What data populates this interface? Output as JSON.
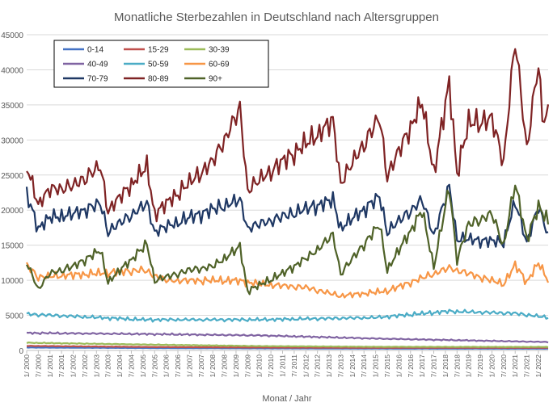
{
  "chart_data": {
    "type": "line",
    "title": "Monatliche Sterbezahlen in Deutschland nach Altersgruppen",
    "xlabel": "Monat /  Jahr",
    "ylabel": "",
    "ylim": [
      0,
      45000
    ],
    "yticks": [
      0,
      5000,
      10000,
      15000,
      20000,
      25000,
      30000,
      35000,
      40000,
      45000
    ],
    "ytick_labels": [
      "0",
      "5000",
      "10000",
      "15000",
      "20000",
      "25000",
      "30000",
      "35000",
      "40000",
      "45000"
    ],
    "x_range": [
      "2000-01",
      "2022-06"
    ],
    "x_tick_labels": [
      "1/ 2000",
      "7/ 2000",
      "1/ 2001",
      "7/ 2001",
      "1/ 2002",
      "7/ 2002",
      "1/ 2003",
      "7/ 2003",
      "1/ 2004",
      "7/ 2004",
      "1/ 2005",
      "7/ 2005",
      "1/ 2006",
      "7/ 2006",
      "1/ 2007",
      "7/ 2007",
      "1/ 2008",
      "7/ 2008",
      "1/ 2009",
      "7/ 2009",
      "1/ 2010",
      "7/ 2010",
      "1/ 2011",
      "7/ 2011",
      "1/ 2012",
      "7/ 2012",
      "1/ 2013",
      "7/ 2013",
      "1/ 2014",
      "7/ 2014",
      "1/ 2015",
      "7/ 2015",
      "1/ 2016",
      "7/ 2016",
      "1/ 2017",
      "7/ 2017",
      "1/ 2018",
      "7/ 2018",
      "1/ 2019",
      "7/ 2019",
      "1/ 2020",
      "7/ 2020",
      "1/ 2021",
      "7/ 2021",
      "1/ 2022"
    ],
    "grid": "horizontal",
    "legend_position": "top-left",
    "series": [
      {
        "name": "0-14",
        "color": "#4472c4",
        "points": [
          [
            "2000-01",
            420
          ],
          [
            "2005-01",
            350
          ],
          [
            "2010-01",
            300
          ],
          [
            "2015-01",
            260
          ],
          [
            "2022-06",
            250
          ]
        ]
      },
      {
        "name": "15-29",
        "color": "#c0504d",
        "points": [
          [
            "2000-01",
            650
          ],
          [
            "2005-01",
            500
          ],
          [
            "2010-01",
            420
          ],
          [
            "2015-01",
            380
          ],
          [
            "2022-06",
            380
          ]
        ]
      },
      {
        "name": "30-39",
        "color": "#9bbb59",
        "points": [
          [
            "2000-01",
            1100
          ],
          [
            "2005-01",
            850
          ],
          [
            "2010-01",
            620
          ],
          [
            "2015-01",
            520
          ],
          [
            "2022-06",
            500
          ]
        ]
      },
      {
        "name": "40-49",
        "color": "#8064a2",
        "points": [
          [
            "2000-01",
            2500
          ],
          [
            "2005-01",
            2350
          ],
          [
            "2010-01",
            2150
          ],
          [
            "2015-01",
            1700
          ],
          [
            "2022-06",
            1200
          ]
        ]
      },
      {
        "name": "50-59",
        "color": "#4bacc6",
        "points": [
          [
            "2000-01",
            5200
          ],
          [
            "2005-01",
            4400
          ],
          [
            "2010-01",
            4400
          ],
          [
            "2015-01",
            4700
          ],
          [
            "2018-03",
            5600
          ],
          [
            "2021-01",
            5300
          ],
          [
            "2022-06",
            4700
          ]
        ]
      },
      {
        "name": "60-69",
        "color": "#f79646",
        "points": [
          [
            "2000-01",
            12200
          ],
          [
            "2000-07",
            10500
          ],
          [
            "2003-01",
            11000
          ],
          [
            "2005-01",
            11500
          ],
          [
            "2006-01",
            10000
          ],
          [
            "2009-01",
            10000
          ],
          [
            "2010-01",
            9500
          ],
          [
            "2012-01",
            9000
          ],
          [
            "2013-07",
            7800
          ],
          [
            "2015-07",
            8500
          ],
          [
            "2018-03",
            11800
          ],
          [
            "2020-07",
            9500
          ],
          [
            "2021-01",
            12200
          ],
          [
            "2021-07",
            9800
          ],
          [
            "2022-01",
            12500
          ],
          [
            "2022-06",
            10000
          ]
        ]
      },
      {
        "name": "70-79",
        "color": "#1f3864",
        "points": [
          [
            "2000-01",
            22300
          ],
          [
            "2000-07",
            17500
          ],
          [
            "2001-01",
            19000
          ],
          [
            "2002-01",
            19500
          ],
          [
            "2003-03",
            21000
          ],
          [
            "2003-07",
            17000
          ],
          [
            "2005-03",
            21000
          ],
          [
            "2005-07",
            17000
          ],
          [
            "2007-01",
            19000
          ],
          [
            "2009-03",
            21500
          ],
          [
            "2009-07",
            17500
          ],
          [
            "2013-03",
            21500
          ],
          [
            "2013-07",
            17500
          ],
          [
            "2015-03",
            22000
          ],
          [
            "2015-07",
            17000
          ],
          [
            "2017-01",
            21500
          ],
          [
            "2017-07",
            16500
          ],
          [
            "2018-03",
            23400
          ],
          [
            "2018-07",
            16000
          ],
          [
            "2020-07",
            15500
          ],
          [
            "2021-01",
            21200
          ],
          [
            "2021-07",
            15500
          ],
          [
            "2022-01",
            20500
          ],
          [
            "2022-06",
            16500
          ]
        ]
      },
      {
        "name": "80-89",
        "color": "#7f2324",
        "points": [
          [
            "2000-01",
            26300
          ],
          [
            "2000-07",
            21000
          ],
          [
            "2001-01",
            23000
          ],
          [
            "2002-01",
            23500
          ],
          [
            "2003-03",
            26300
          ],
          [
            "2003-07",
            20000
          ],
          [
            "2005-03",
            26300
          ],
          [
            "2005-07",
            19500
          ],
          [
            "2007-01",
            24000
          ],
          [
            "2008-01",
            27000
          ],
          [
            "2009-03",
            34500
          ],
          [
            "2009-07",
            23000
          ],
          [
            "2011-01",
            27000
          ],
          [
            "2012-03",
            30000
          ],
          [
            "2013-03",
            32800
          ],
          [
            "2013-07",
            24000
          ],
          [
            "2015-03",
            33300
          ],
          [
            "2015-07",
            25000
          ],
          [
            "2017-01",
            35500
          ],
          [
            "2017-07",
            25500
          ],
          [
            "2018-03",
            38200
          ],
          [
            "2018-07",
            25500
          ],
          [
            "2019-01",
            32500
          ],
          [
            "2020-01",
            33000
          ],
          [
            "2020-07",
            27000
          ],
          [
            "2021-01",
            44300
          ],
          [
            "2021-07",
            29000
          ],
          [
            "2022-01",
            41000
          ],
          [
            "2022-03",
            33000
          ],
          [
            "2022-06",
            34000
          ]
        ]
      },
      {
        "name": "90+",
        "color": "#4f6228",
        "points": [
          [
            "2000-01",
            12500
          ],
          [
            "2000-07",
            8800
          ],
          [
            "2001-01",
            11000
          ],
          [
            "2002-01",
            12000
          ],
          [
            "2003-03",
            14300
          ],
          [
            "2003-07",
            9800
          ],
          [
            "2005-03",
            15200
          ],
          [
            "2005-07",
            10000
          ],
          [
            "2007-01",
            11500
          ],
          [
            "2008-01",
            12000
          ],
          [
            "2009-03",
            14800
          ],
          [
            "2009-07",
            8500
          ],
          [
            "2011-01",
            11000
          ],
          [
            "2012-03",
            13500
          ],
          [
            "2013-03",
            16500
          ],
          [
            "2013-07",
            11000
          ],
          [
            "2015-03",
            18000
          ],
          [
            "2015-07",
            11500
          ],
          [
            "2017-01",
            20000
          ],
          [
            "2017-07",
            12000
          ],
          [
            "2018-03",
            23300
          ],
          [
            "2018-07",
            13000
          ],
          [
            "2019-01",
            18000
          ],
          [
            "2020-01",
            19500
          ],
          [
            "2020-07",
            15000
          ],
          [
            "2021-01",
            23800
          ],
          [
            "2021-07",
            16000
          ],
          [
            "2022-01",
            20500
          ],
          [
            "2022-06",
            18500
          ]
        ]
      }
    ]
  }
}
